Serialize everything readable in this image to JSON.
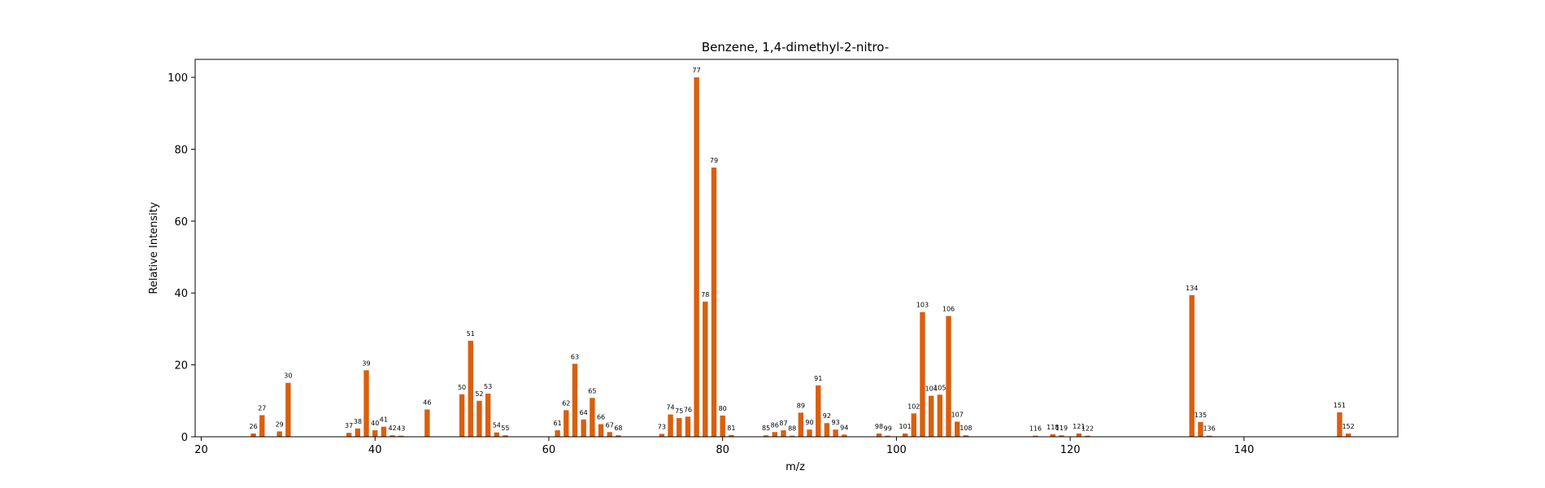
{
  "chart_data": {
    "type": "bar",
    "title": "Benzene, 1,4-dimethyl-2-nitro-",
    "xlabel": "m/z",
    "ylabel": "Relative Intensity",
    "xlim": [
      19.3,
      157.7
    ],
    "ylim": [
      0,
      105
    ],
    "xticks": [
      20,
      40,
      60,
      80,
      100,
      120,
      140
    ],
    "yticks": [
      0,
      20,
      40,
      60,
      80,
      100
    ],
    "grid": false,
    "bar_color": "#d95f0e",
    "series": [
      {
        "x": [
          26,
          27,
          29,
          30,
          37,
          38,
          39,
          40,
          41,
          42,
          43,
          46,
          50,
          51,
          52,
          53,
          54,
          55,
          61,
          62,
          63,
          64,
          65,
          66,
          67,
          68,
          73,
          74,
          75,
          76,
          77,
          78,
          79,
          80,
          81,
          85,
          86,
          87,
          88,
          89,
          90,
          91,
          92,
          93,
          94,
          98,
          99,
          101,
          102,
          103,
          104,
          105,
          106,
          107,
          108,
          116,
          118,
          119,
          121,
          122,
          134,
          135,
          136,
          151,
          152
        ],
        "values": [
          0.9,
          6.0,
          1.5,
          15.0,
          1.1,
          2.3,
          18.5,
          1.8,
          2.8,
          0.4,
          0.3,
          7.6,
          11.8,
          26.7,
          10.0,
          12.0,
          1.2,
          0.4,
          1.8,
          7.4,
          20.3,
          4.8,
          10.8,
          3.5,
          1.3,
          0.4,
          0.8,
          6.2,
          5.2,
          5.6,
          100,
          37.6,
          74.9,
          5.9,
          0.5,
          0.4,
          1.3,
          1.8,
          0.3,
          6.7,
          2.0,
          14.3,
          3.8,
          2.0,
          0.6,
          0.9,
          0.3,
          0.9,
          6.5,
          34.7,
          11.4,
          11.7,
          33.6,
          4.2,
          0.4,
          0.3,
          0.7,
          0.4,
          0.9,
          0.3,
          39.4,
          4.1,
          0.3,
          6.8,
          0.9
        ]
      }
    ]
  }
}
